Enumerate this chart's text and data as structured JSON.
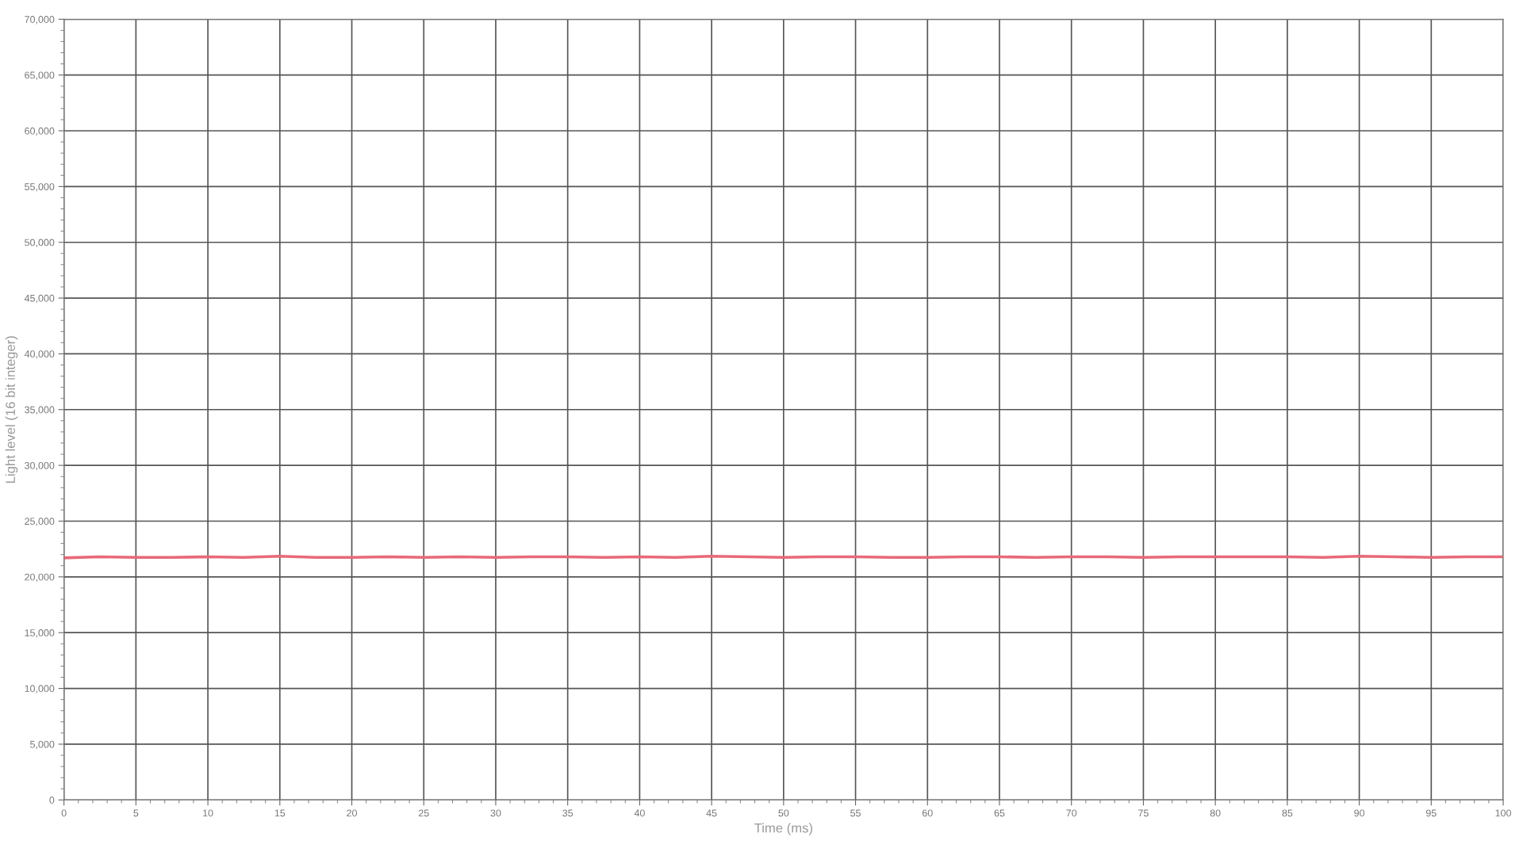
{
  "chart_data": {
    "type": "line",
    "xlabel": "Time (ms)",
    "ylabel": "Light level (16 bit integer)",
    "x": [
      0,
      2.5,
      5,
      7.5,
      10,
      12.5,
      15,
      17.5,
      20,
      22.5,
      25,
      27.5,
      30,
      32.5,
      35,
      37.5,
      40,
      42.5,
      45,
      47.5,
      50,
      52.5,
      55,
      57.5,
      60,
      62.5,
      65,
      67.5,
      70,
      72.5,
      75,
      77.5,
      80,
      82.5,
      85,
      87.5,
      90,
      92.5,
      95,
      97.5,
      100
    ],
    "series": [
      {
        "color": "#e8697a",
        "values": [
          21700,
          21800,
          21750,
          21750,
          21800,
          21750,
          21850,
          21750,
          21750,
          21800,
          21750,
          21800,
          21750,
          21800,
          21800,
          21750,
          21800,
          21750,
          21850,
          21800,
          21750,
          21800,
          21800,
          21750,
          21750,
          21800,
          21800,
          21750,
          21800,
          21800,
          21750,
          21800,
          21800,
          21800,
          21800,
          21750,
          21850,
          21800,
          21750,
          21800,
          21800
        ]
      }
    ],
    "xlim": [
      0,
      100
    ],
    "xticks": [
      0,
      5,
      10,
      15,
      20,
      25,
      30,
      35,
      40,
      45,
      50,
      55,
      60,
      65,
      70,
      75,
      80,
      85,
      90,
      95,
      100
    ],
    "ylim": [
      0,
      70000
    ],
    "yticks": [
      {
        "value": 0,
        "label": "0"
      },
      {
        "value": 5000,
        "label": "5,000"
      },
      {
        "value": 10000,
        "label": "10,000"
      },
      {
        "value": 15000,
        "label": "15,000"
      },
      {
        "value": 20000,
        "label": "20,000"
      },
      {
        "value": 25000,
        "label": "25,000"
      },
      {
        "value": 30000,
        "label": "30,000"
      },
      {
        "value": 35000,
        "label": "35,000"
      },
      {
        "value": 40000,
        "label": "40,000"
      },
      {
        "value": 45000,
        "label": "45,000"
      },
      {
        "value": 50000,
        "label": "50,000"
      },
      {
        "value": 55000,
        "label": "55,000"
      },
      {
        "value": 60000,
        "label": "60,000"
      },
      {
        "value": 65000,
        "label": "65,000"
      },
      {
        "value": 70000,
        "label": "70,000"
      }
    ],
    "grid": true,
    "marker": "none",
    "line_style": "solid",
    "legend": false
  }
}
